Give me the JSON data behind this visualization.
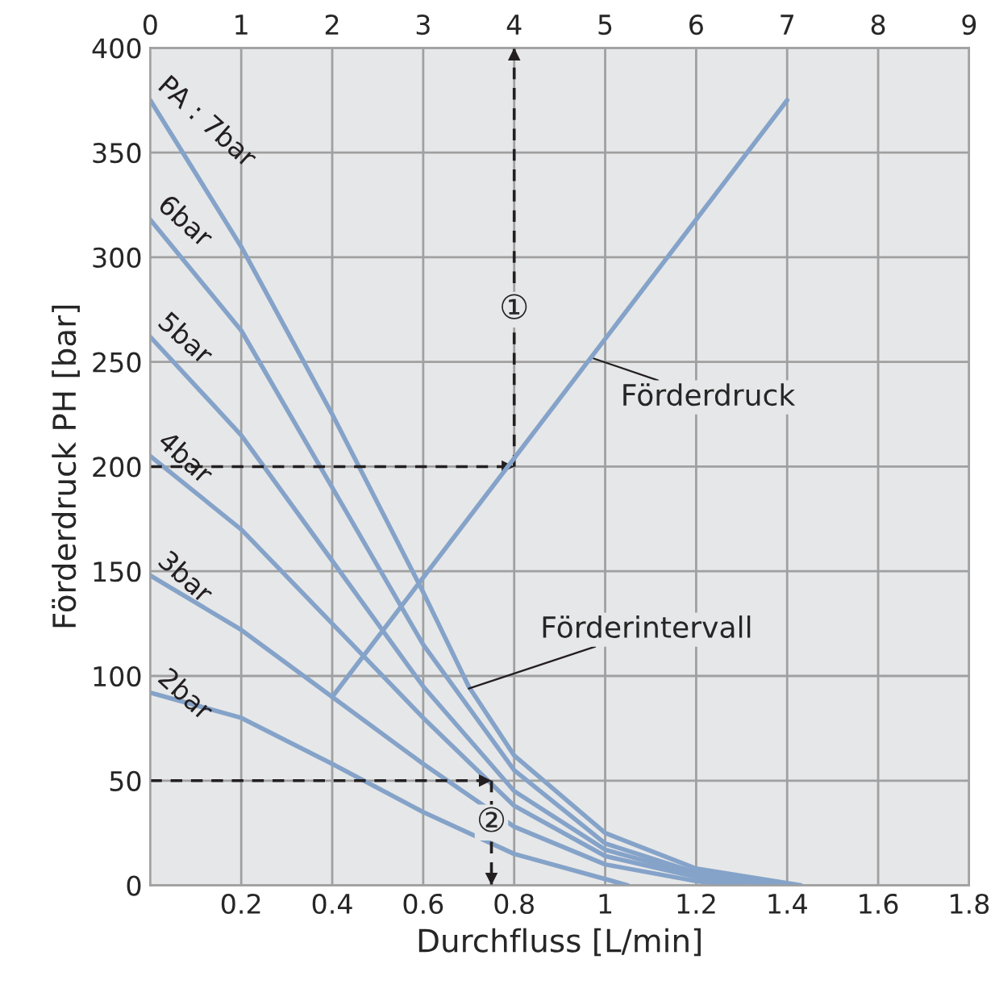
{
  "chart_data": {
    "type": "line",
    "xlabel": "Durchfluss [L/min]",
    "ylabel": "Förderdruck PH [bar]",
    "xlim": [
      0,
      1.8
    ],
    "xticks": [
      0.2,
      0.4,
      0.6,
      0.8,
      1,
      1.2,
      1.4,
      1.6,
      1.8
    ],
    "x2lim": [
      0,
      9
    ],
    "x2ticks": [
      0,
      1,
      2,
      3,
      4,
      5,
      6,
      7,
      8,
      9
    ],
    "ylim": [
      0,
      400
    ],
    "yticks": [
      0,
      50,
      100,
      150,
      200,
      250,
      300,
      350,
      400
    ],
    "grid": true,
    "marker": "none",
    "series": [
      {
        "name": "PA : 7bar",
        "color": "#85a3c9",
        "x": [
          0,
          0.2,
          0.4,
          0.6,
          0.7,
          0.8,
          1.0,
          1.2,
          1.43
        ],
        "values": [
          375,
          305,
          225,
          140,
          95,
          62,
          25,
          8,
          0
        ]
      },
      {
        "name": "6bar",
        "color": "#85a3c9",
        "x": [
          0,
          0.2,
          0.4,
          0.6,
          0.8,
          1.0,
          1.2,
          1.42
        ],
        "values": [
          318,
          265,
          190,
          115,
          55,
          20,
          6,
          0
        ]
      },
      {
        "name": "5bar",
        "color": "#85a3c9",
        "x": [
          0,
          0.2,
          0.4,
          0.6,
          0.8,
          1.0,
          1.2,
          1.4
        ],
        "values": [
          262,
          215,
          155,
          95,
          45,
          17,
          5,
          0
        ]
      },
      {
        "name": "4bar",
        "color": "#85a3c9",
        "x": [
          0,
          0.2,
          0.4,
          0.6,
          0.8,
          1.0,
          1.2,
          1.38
        ],
        "values": [
          205,
          170,
          125,
          80,
          38,
          14,
          4,
          0
        ]
      },
      {
        "name": "3bar",
        "color": "#85a3c9",
        "x": [
          0,
          0.2,
          0.4,
          0.6,
          0.8,
          1.0,
          1.2,
          1.3
        ],
        "values": [
          148,
          122,
          90,
          58,
          28,
          10,
          2,
          0
        ]
      },
      {
        "name": "2bar",
        "color": "#85a3c9",
        "x": [
          0,
          0.2,
          0.4,
          0.6,
          0.8,
          1.0,
          1.05
        ],
        "values": [
          92,
          80,
          58,
          35,
          15,
          3,
          0
        ]
      },
      {
        "color": "#85a3c9",
        "axis": "x2",
        "x": [
          2,
          7
        ],
        "values": [
          90,
          375
        ]
      },
      {
        "color": "#231f20",
        "line_style": "dashed",
        "x": [
          0,
          0.8
        ],
        "values": [
          200,
          200
        ]
      },
      {
        "color": "#231f20",
        "line_style": "dashed",
        "x": [
          0.8,
          0.8
        ],
        "values": [
          200,
          400
        ]
      },
      {
        "color": "#231f20",
        "line_style": "dashed",
        "x": [
          0,
          0.75
        ],
        "values": [
          50,
          50
        ]
      },
      {
        "color": "#231f20",
        "line_style": "dashed",
        "x": [
          0.75,
          0.75
        ],
        "values": [
          50,
          0
        ]
      }
    ],
    "annotations": [
      {
        "text": "Förderdruck",
        "x": 0.97,
        "y": 252
      },
      {
        "text": "Förderintervall",
        "x": 0.7,
        "y": 94
      },
      {
        "text": "①",
        "x": 0.8,
        "y": 275
      },
      {
        "text": "②",
        "x": 0.75,
        "y": 30
      }
    ]
  }
}
